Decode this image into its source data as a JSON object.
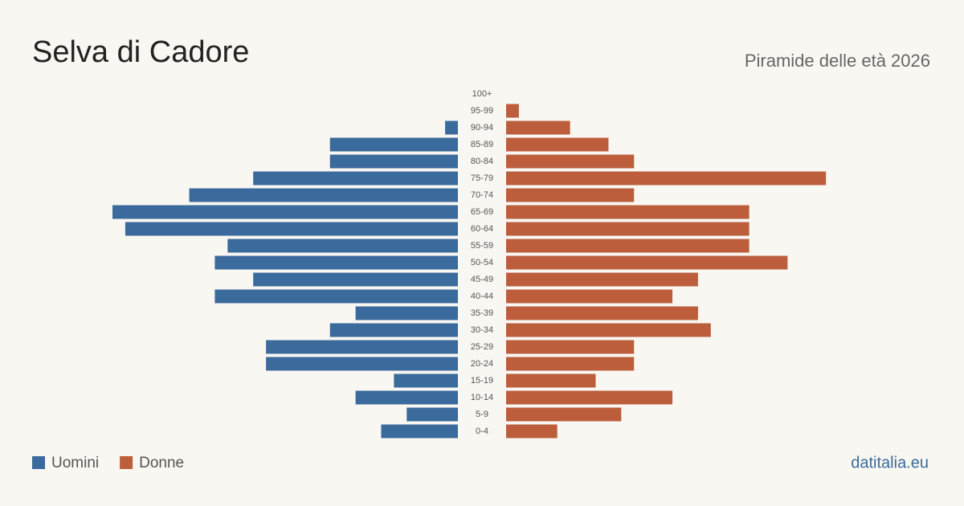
{
  "chart_data": {
    "type": "pyramid",
    "title": "Selva di Cadore",
    "subtitle": "Piramide delle età 2026",
    "source": "datitalia.eu",
    "categories": [
      "100+",
      "95-99",
      "90-94",
      "85-89",
      "80-84",
      "75-79",
      "70-74",
      "65-69",
      "60-64",
      "55-59",
      "50-54",
      "45-49",
      "40-44",
      "35-39",
      "30-34",
      "25-29",
      "20-24",
      "15-19",
      "10-14",
      "5-9",
      "0-4"
    ],
    "series": [
      {
        "name": "Uomini",
        "color": "#3b6a9c",
        "values": [
          0,
          0,
          1,
          10,
          10,
          16,
          21,
          27,
          26,
          18,
          19,
          16,
          19,
          8,
          10,
          15,
          15,
          5,
          8,
          4,
          6
        ]
      },
      {
        "name": "Donne",
        "color": "#bc5e3c",
        "values": [
          0,
          1,
          5,
          8,
          10,
          25,
          10,
          19,
          19,
          19,
          22,
          15,
          13,
          15,
          16,
          10,
          10,
          7,
          13,
          9,
          4
        ]
      }
    ]
  }
}
